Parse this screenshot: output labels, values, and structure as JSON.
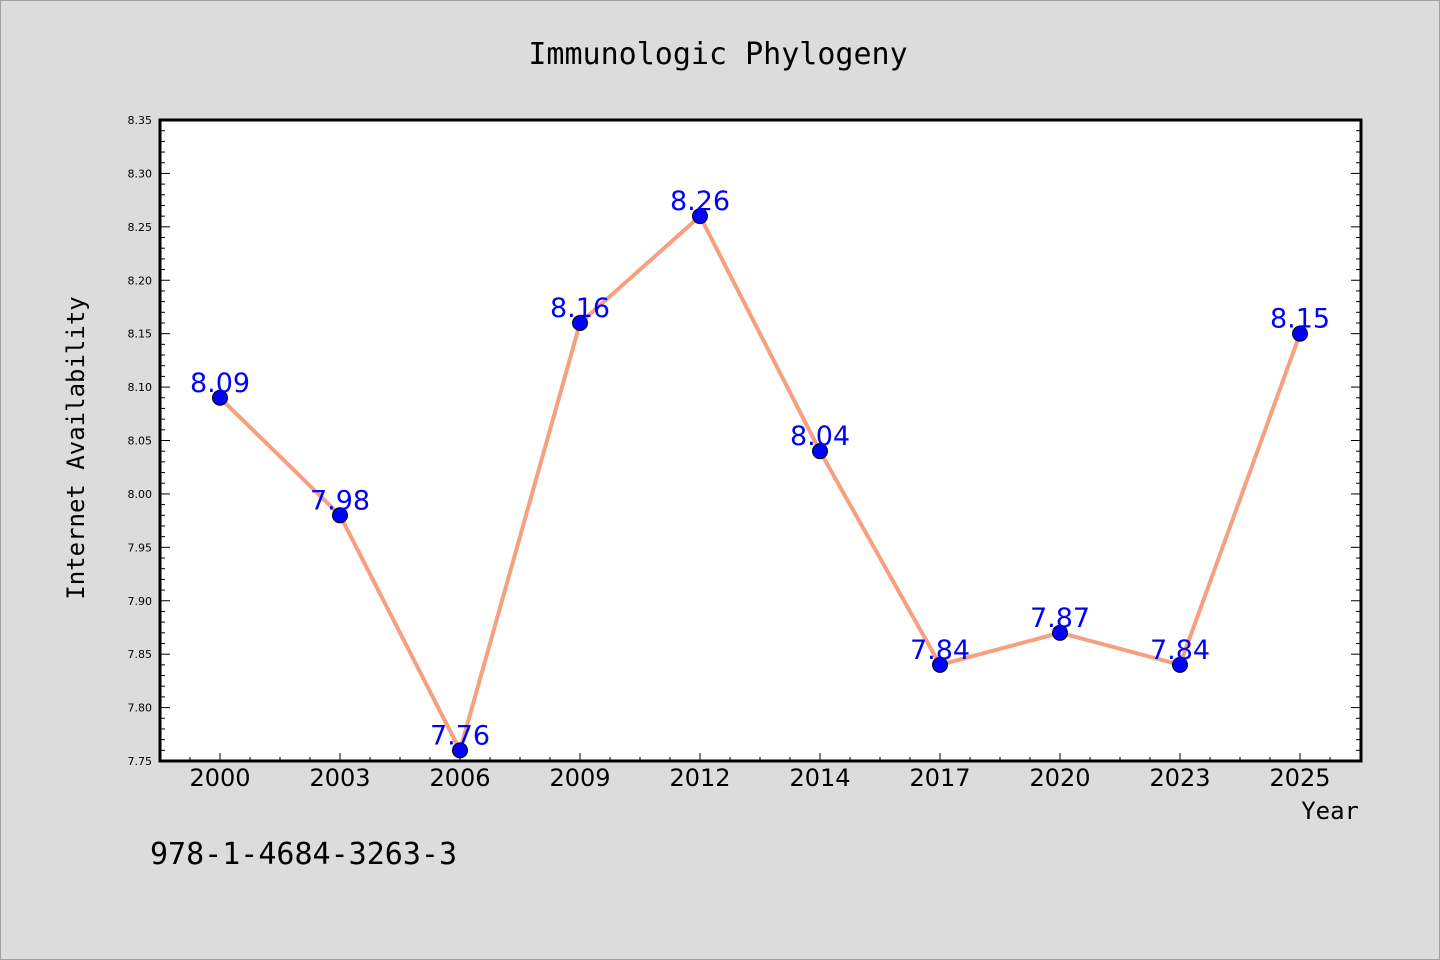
{
  "footnote": "978-1-4684-3263-3",
  "colors": {
    "background": "#dcdcdc",
    "plot_background": "#ffffff",
    "line": "#f5a07e",
    "marker": "#0000ff",
    "label": "#0000ff"
  },
  "chart_data": {
    "type": "line",
    "title": "Immunologic Phylogeny",
    "xlabel": "Year",
    "ylabel": "Internet Availability",
    "categories": [
      "2000",
      "2003",
      "2006",
      "2009",
      "2012",
      "2014",
      "2017",
      "2020",
      "2023",
      "2025"
    ],
    "series": [
      {
        "values": [
          8.09,
          7.98,
          7.76,
          8.16,
          8.26,
          8.04,
          7.84,
          7.87,
          7.84,
          8.15
        ],
        "labels": [
          "8.09",
          "7.98",
          "7.76",
          "8.16",
          "8.26",
          "8.04",
          "7.84",
          "7.87",
          "7.84",
          "8.15"
        ]
      }
    ],
    "ylim": [
      7.75,
      8.35
    ],
    "yticks": [
      "7.75",
      "7.80",
      "7.85",
      "7.90",
      "7.95",
      "8.00",
      "8.05",
      "8.10",
      "8.15",
      "8.20",
      "8.25",
      "8.30",
      "8.35"
    ],
    "grid": false,
    "legend": "none"
  }
}
